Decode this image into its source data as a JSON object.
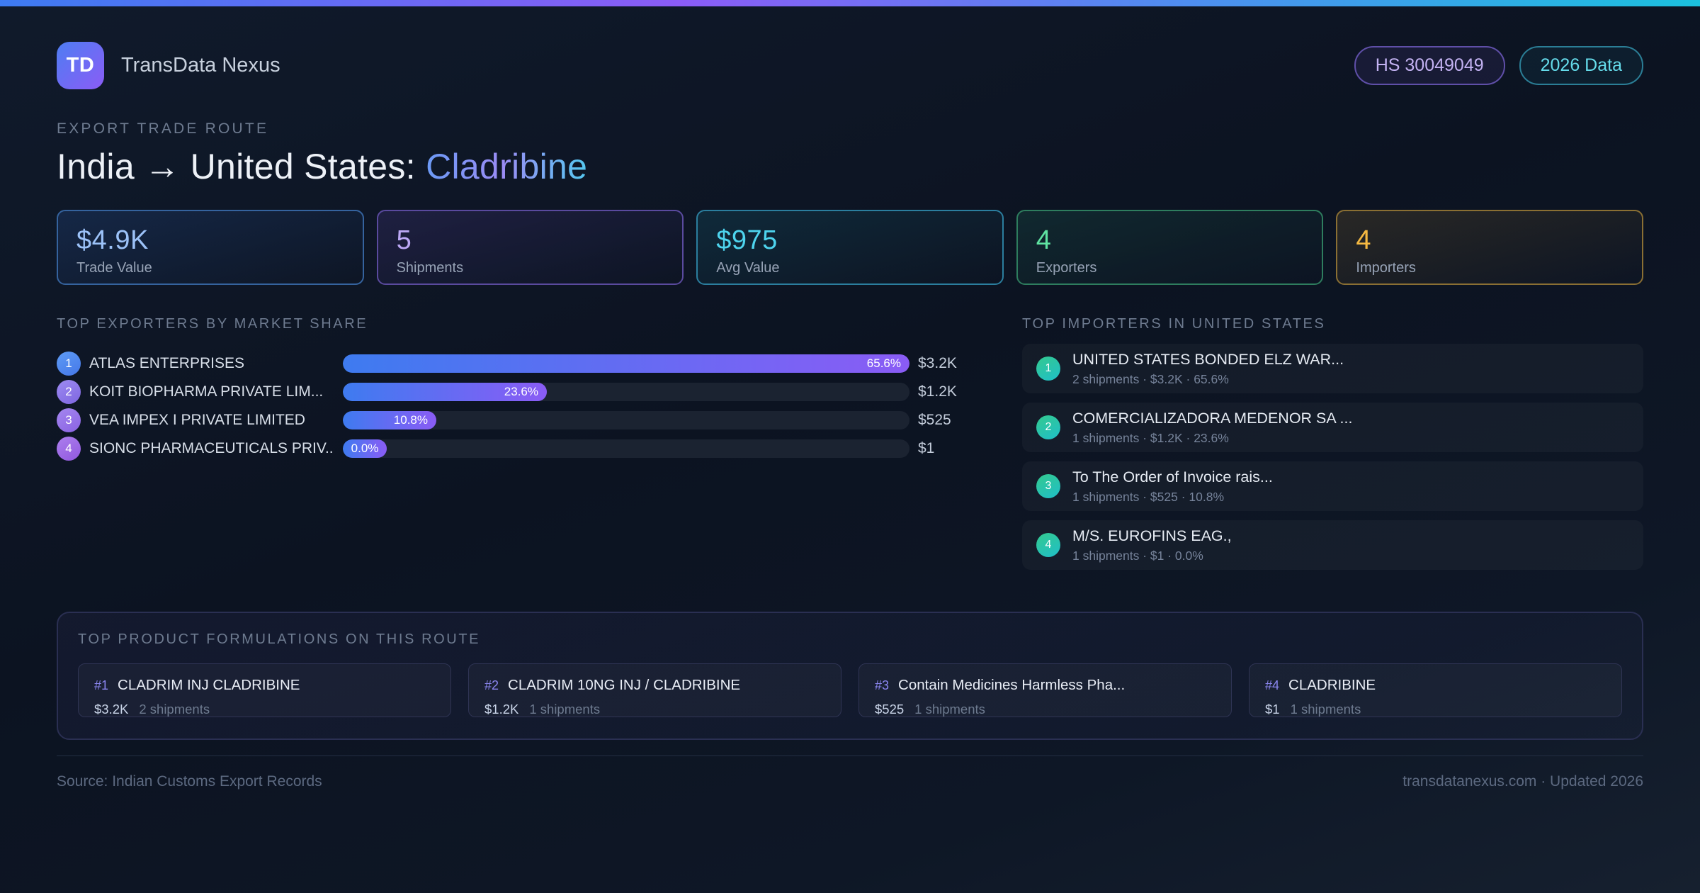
{
  "colors": {
    "topbar_gradient": [
      "#3D7BF2",
      "#8B5CF6",
      "#4E8EF0",
      "#1BC1DE"
    ],
    "accent_blue": "#3E7BF0",
    "accent_purple": "#8B5CF6",
    "accent_cyan": "#22D3EE"
  },
  "brand": {
    "logo_text": "TD",
    "name": "TransData Nexus",
    "logo_colors": [
      "#4E7DF2",
      "#8B5CF6"
    ]
  },
  "header": {
    "badges": [
      {
        "label": "HS 30049049",
        "text_color": "#C3B2F2",
        "border_color": "#5F4FA8",
        "bg_tint": "#8B5CF618"
      },
      {
        "label": "2026 Data",
        "text_color": "#65DBEA",
        "border_color": "#2B7E96",
        "bg_tint": "#22D3EE10"
      }
    ]
  },
  "title": {
    "eyebrow": "EXPORT TRADE ROUTE",
    "route": "India → United States:",
    "product": "Cladribine",
    "product_colors": [
      "#6B9AF5",
      "#9B8CF5",
      "#55C8F0"
    ]
  },
  "stats": {
    "cards": [
      {
        "value": "$4.9K",
        "label": "Trade Value",
        "value_color": "#9CC2F8",
        "border_color": "#35639E",
        "tint": "#3B82F626"
      },
      {
        "value": "5",
        "label": "Shipments",
        "value_color": "#BCA8F5",
        "border_color": "#5A4A9E",
        "tint": "#8B5CF622"
      },
      {
        "value": "$975",
        "label": "Avg Value",
        "value_color": "#4ED4EE",
        "border_color": "#2B7E9E",
        "tint": "#22D3EE1C"
      },
      {
        "value": "4",
        "label": "Exporters",
        "value_color": "#5FE3A1",
        "border_color": "#2E7D5E",
        "tint": "#34D3991C"
      },
      {
        "value": "4",
        "label": "Importers",
        "value_color": "#F5B942",
        "border_color": "#8A6F33",
        "tint": "#F5B94220"
      }
    ]
  },
  "exporters": {
    "heading": "TOP EXPORTERS BY MARKET SHARE",
    "bar_colors": [
      "#3E7BF0",
      "#8A5CF5"
    ],
    "rows": [
      {
        "rank": "1",
        "name": "ATLAS ENTERPRISES",
        "share_pct": 65.6,
        "share_label": "65.6%",
        "value": "$3.2K",
        "bar_width_pct": 100,
        "badge_colors": [
          "#5E9CF5",
          "#4577E8"
        ]
      },
      {
        "rank": "2",
        "name": "KOIT BIOPHARMA PRIVATE LIM...",
        "share_pct": 23.6,
        "share_label": "23.6%",
        "value": "$1.2K",
        "bar_width_pct": 36,
        "badge_colors": [
          "#9D8BF2",
          "#7E66E0"
        ]
      },
      {
        "rank": "3",
        "name": "VEA IMPEX I PRIVATE LIMITED",
        "share_pct": 10.8,
        "share_label": "10.8%",
        "value": "$525",
        "bar_width_pct": 16.5,
        "badge_colors": [
          "#A487F0",
          "#8A62E2"
        ]
      },
      {
        "rank": "4",
        "name": "SIONC PHARMACEUTICALS PRIV...",
        "share_pct": 0.0,
        "share_label": "0.0%",
        "value": "$1",
        "bar_width_pct": 7.8,
        "badge_colors": [
          "#AC7FEE",
          "#9158DE"
        ]
      }
    ]
  },
  "importers": {
    "heading": "TOP IMPORTERS IN UNITED STATES",
    "badge_colors": [
      "#34C98E",
      "#1FBFC9"
    ],
    "rows": [
      {
        "rank": "1",
        "name": "UNITED STATES BONDED ELZ WAR...",
        "meta": "2 shipments · $3.2K · 65.6%"
      },
      {
        "rank": "2",
        "name": "COMERCIALIZADORA MEDENOR SA ...",
        "meta": "1 shipments · $1.2K · 23.6%"
      },
      {
        "rank": "3",
        "name": "To The Order of Invoice rais...",
        "meta": "1 shipments · $525 · 10.8%"
      },
      {
        "rank": "4",
        "name": "M/S. EUROFINS EAG.,",
        "meta": "1 shipments · $1 · 0.0%"
      }
    ]
  },
  "products": {
    "heading": "TOP PRODUCT FORMULATIONS ON THIS ROUTE",
    "cards": [
      {
        "rank": "#1",
        "name": "CLADRIM INJ CLADRIBINE",
        "value": "$3.2K",
        "shipments": "2 shipments"
      },
      {
        "rank": "#2",
        "name": "CLADRIM 10NG INJ / CLADRIBINE",
        "value": "$1.2K",
        "shipments": "1 shipments"
      },
      {
        "rank": "#3",
        "name": "Contain Medicines Harmless Pha...",
        "value": "$525",
        "shipments": "1 shipments"
      },
      {
        "rank": "#4",
        "name": "CLADRIBINE",
        "value": "$1",
        "shipments": "1 shipments"
      }
    ]
  },
  "footer": {
    "source": "Source: Indian Customs Export Records",
    "right": "transdatanexus.com · Updated 2026"
  }
}
